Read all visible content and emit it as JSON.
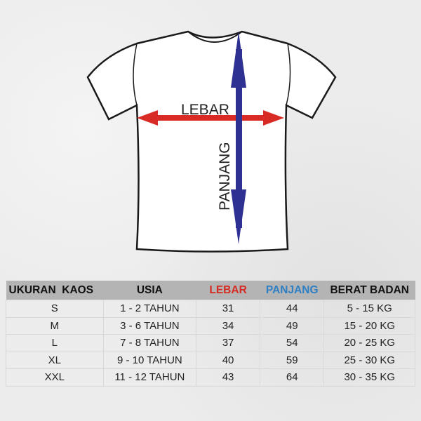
{
  "diagram": {
    "width_label": "LEBAR",
    "length_label": "PANJANG",
    "width_arrow_color": "#d92b25",
    "length_arrow_color": "#2e3192"
  },
  "table": {
    "headers": [
      {
        "label": "UKURAN  KAOS",
        "color": "#111111"
      },
      {
        "label": "USIA",
        "color": "#111111"
      },
      {
        "label": "LEBAR",
        "color": "#d62b25"
      },
      {
        "label": "PANJANG",
        "color": "#2f7fc4"
      },
      {
        "label": "BERAT BADAN",
        "color": "#111111"
      }
    ],
    "rows": [
      [
        "S",
        "1 - 2 TAHUN",
        "31",
        "44",
        "5 - 15 KG"
      ],
      [
        "M",
        "3 - 6 TAHUN",
        "34",
        "49",
        "15 - 20 KG"
      ],
      [
        "L",
        "7 - 8 TAHUN",
        "37",
        "54",
        "20 - 25 KG"
      ],
      [
        "XL",
        "9 - 10 TAHUN",
        "40",
        "59",
        "25 - 30 KG"
      ],
      [
        "XXL",
        "11 - 12 TAHUN",
        "43",
        "64",
        "30 - 35 KG"
      ]
    ]
  }
}
